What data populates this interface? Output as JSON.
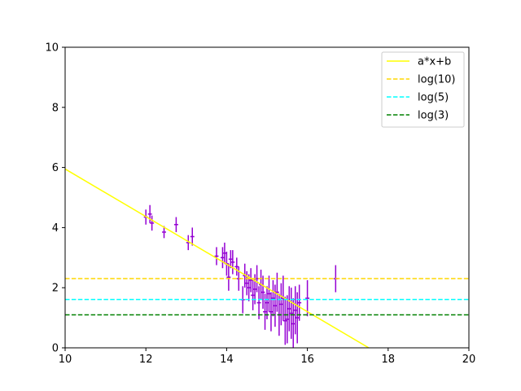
{
  "chart_data": {
    "type": "scatter",
    "xlim": [
      10,
      20
    ],
    "ylim": [
      0,
      10
    ],
    "x_ticks": [
      10,
      12,
      14,
      16,
      18,
      20
    ],
    "y_ticks": [
      0,
      2,
      4,
      6,
      8,
      10
    ],
    "grid": false,
    "legend_position": "top-right",
    "series": [
      {
        "name": "a*x+b",
        "kind": "line",
        "style": "solid",
        "color": "#ffff00",
        "x": [
          10,
          17.52
        ],
        "y": [
          5.95,
          0
        ]
      },
      {
        "name": "log(10)",
        "kind": "hline",
        "style": "dashed",
        "color": "#ffd700",
        "y": 2.3026
      },
      {
        "name": "log(5)",
        "kind": "hline",
        "style": "dashed",
        "color": "#00ffff",
        "y": 1.6094
      },
      {
        "name": "log(3)",
        "kind": "hline",
        "style": "dashed",
        "color": "#008000",
        "y": 1.0986
      }
    ],
    "points": {
      "color": "#9400d3",
      "x": [
        12.0,
        12.1,
        12.15,
        12.45,
        12.75,
        13.05,
        13.15,
        13.75,
        13.9,
        13.95,
        14.0,
        14.05,
        14.1,
        14.15,
        14.25,
        14.3,
        14.4,
        14.45,
        14.5,
        14.55,
        14.6,
        14.65,
        14.7,
        14.75,
        14.8,
        14.85,
        14.9,
        14.95,
        15.0,
        15.05,
        15.1,
        15.15,
        15.2,
        15.25,
        15.3,
        15.35,
        15.4,
        15.45,
        15.5,
        15.55,
        15.6,
        15.65,
        15.7,
        15.75,
        15.8,
        16.0,
        16.7
      ],
      "y": [
        4.35,
        4.45,
        4.15,
        3.85,
        4.1,
        3.5,
        3.7,
        3.05,
        3.0,
        3.15,
        2.8,
        2.35,
        2.95,
        2.85,
        2.7,
        2.3,
        1.6,
        2.4,
        2.15,
        2.0,
        2.25,
        1.75,
        1.95,
        2.3,
        1.5,
        2.1,
        1.85,
        1.2,
        1.5,
        1.8,
        1.2,
        1.65,
        1.4,
        1.85,
        1.1,
        1.45,
        1.65,
        0.9,
        0.95,
        1.3,
        1.15,
        0.8,
        1.25,
        1.0,
        1.5,
        1.65,
        2.3
      ],
      "yerr": [
        0.25,
        0.3,
        0.25,
        0.2,
        0.25,
        0.25,
        0.3,
        0.3,
        0.35,
        0.35,
        0.4,
        0.45,
        0.3,
        0.4,
        0.3,
        0.4,
        0.45,
        0.4,
        0.4,
        0.45,
        0.4,
        0.5,
        0.5,
        0.45,
        0.55,
        0.5,
        0.55,
        0.6,
        0.55,
        0.6,
        0.65,
        0.6,
        0.7,
        0.65,
        0.7,
        0.7,
        0.75,
        0.8,
        0.8,
        0.75,
        0.85,
        0.85,
        0.8,
        0.85,
        0.6,
        0.6,
        0.45
      ],
      "xerr": [
        0.05,
        0.05,
        0.05,
        0.05,
        0.05,
        0.05,
        0.05,
        0.05,
        0.05,
        0.05,
        0.05,
        0.05,
        0.05,
        0.05,
        0.05,
        0.05,
        0.05,
        0.05,
        0.05,
        0.05,
        0.05,
        0.05,
        0.05,
        0.05,
        0.05,
        0.05,
        0.05,
        0.05,
        0.05,
        0.05,
        0.05,
        0.05,
        0.05,
        0.05,
        0.05,
        0.05,
        0.05,
        0.05,
        0.05,
        0.05,
        0.05,
        0.05,
        0.05,
        0.05,
        0.05,
        0.05,
        0.05
      ]
    }
  }
}
